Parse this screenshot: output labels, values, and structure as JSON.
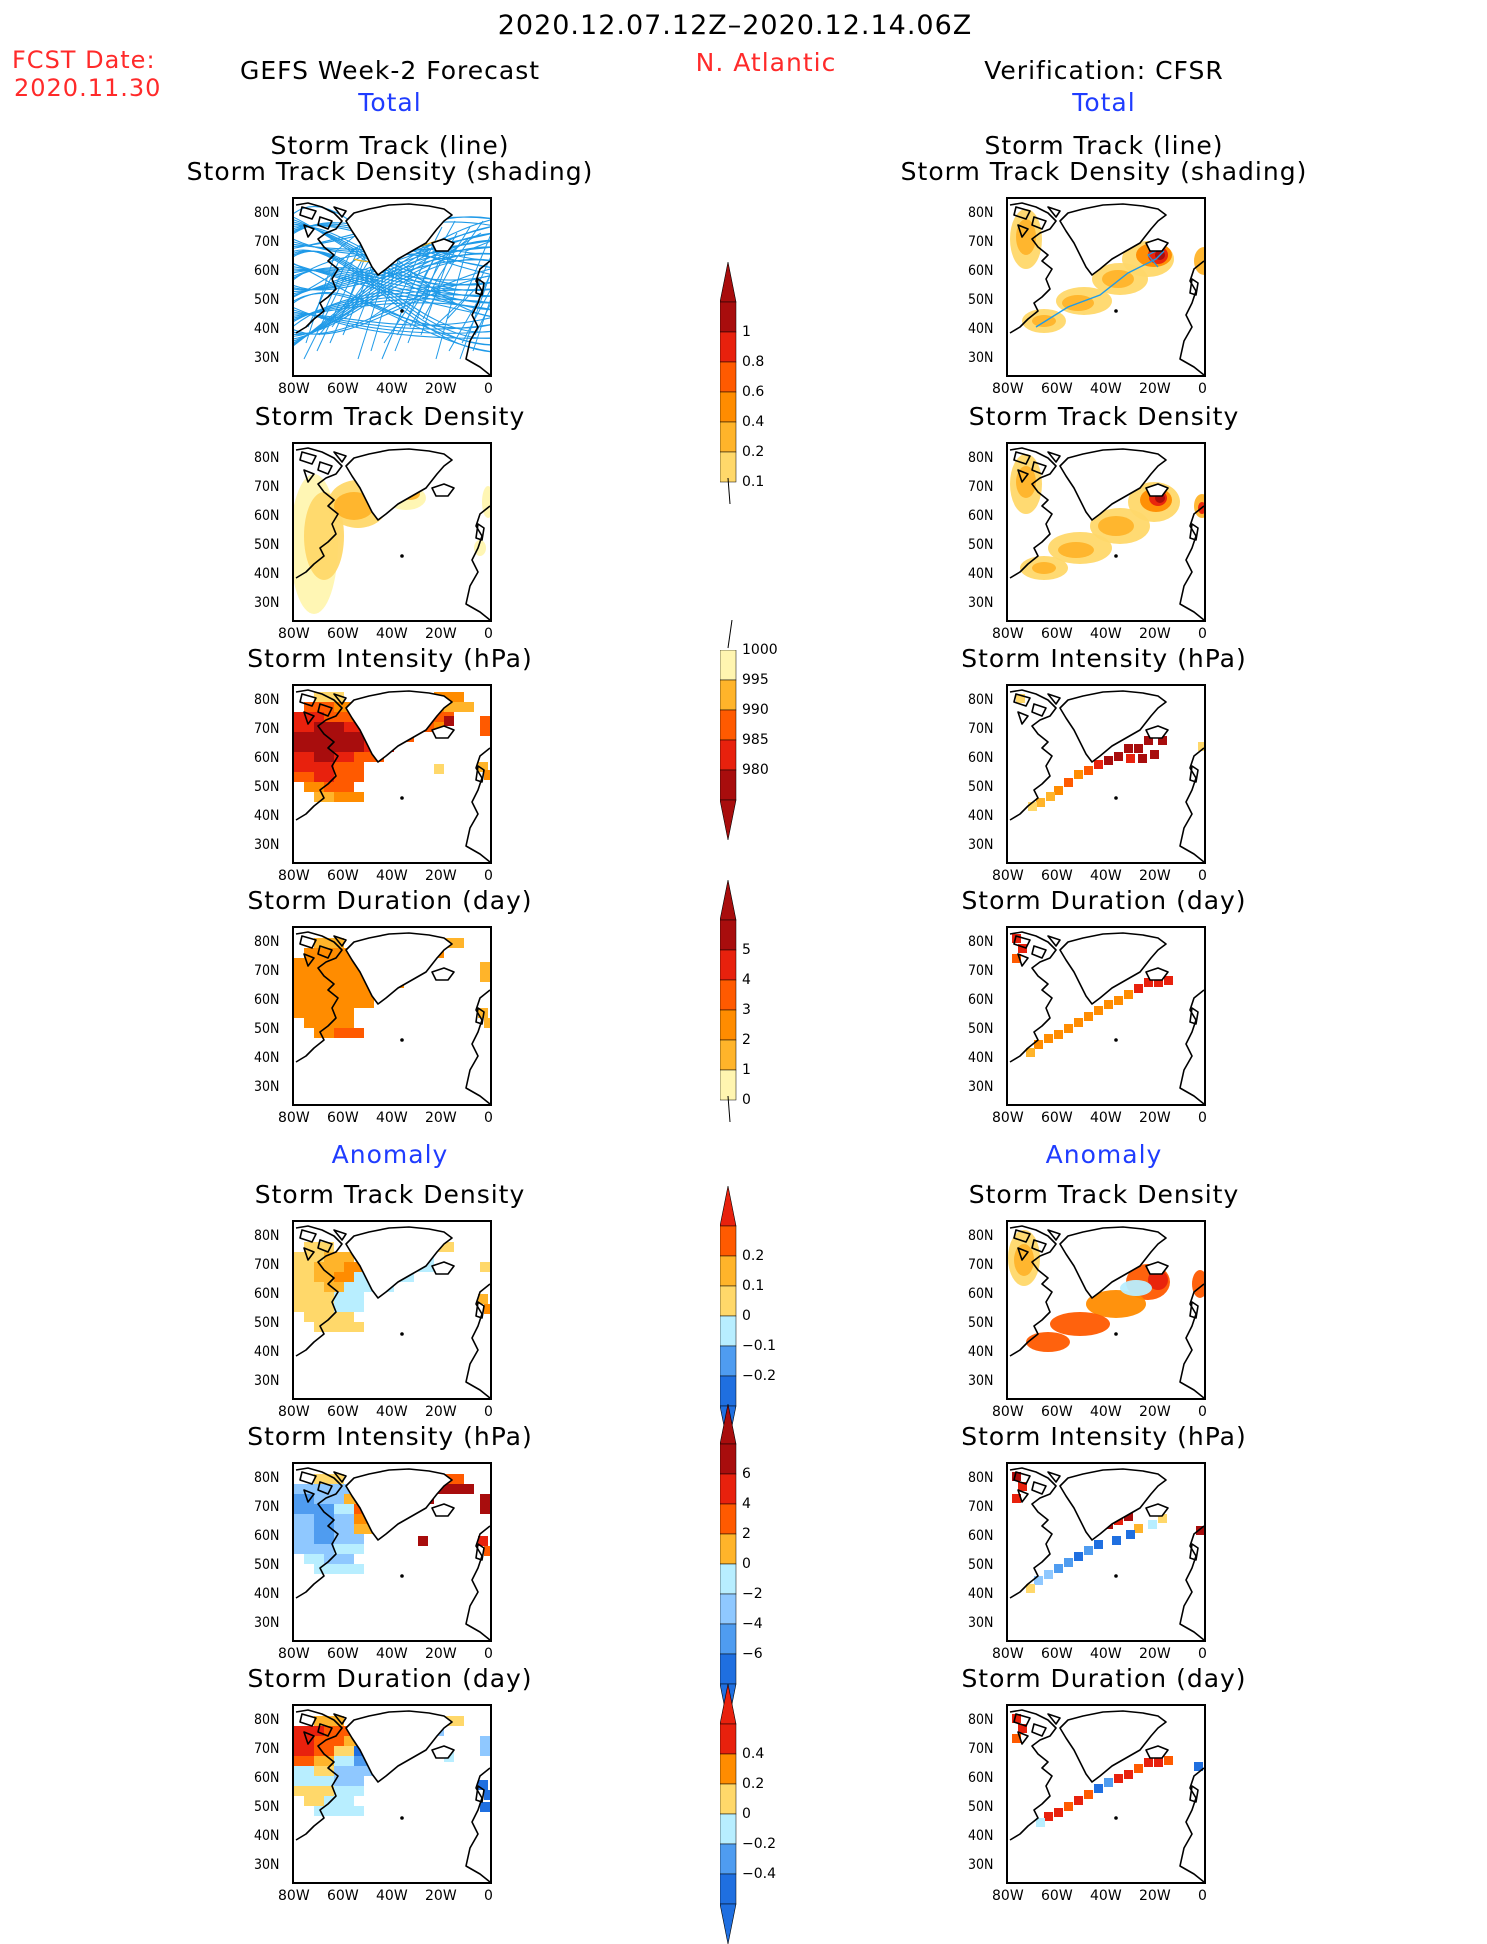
{
  "header": {
    "date_range": "2020.12.07.12Z–2020.12.14.06Z",
    "fcst_label": "FCST Date:",
    "fcst_date": "2020.11.30",
    "left_title": "GEFS Week-2 Forecast",
    "region": "N. Atlantic",
    "right_title": "Verification: CFSR"
  },
  "section_labels": {
    "total": "Total",
    "anomaly": "Anomaly"
  },
  "panel_titles": {
    "track_line": "Storm Track (line)",
    "track_density_shading": "Storm Track Density (shading)",
    "track_density": "Storm Track Density",
    "intensity": "Storm Intensity (hPa)",
    "duration": "Storm Duration (day)"
  },
  "axes": {
    "lat_labels": [
      "80N",
      "70N",
      "60N",
      "50N",
      "40N",
      "30N"
    ],
    "lon_labels": [
      "80W",
      "60W",
      "40W",
      "20W",
      "0"
    ]
  },
  "colorbars": {
    "density": [
      "1",
      "0.8",
      "0.6",
      "0.4",
      "0.2",
      "0.1"
    ],
    "intensity": [
      "1000",
      "995",
      "990",
      "985",
      "980"
    ],
    "duration": [
      "5",
      "4",
      "3",
      "2",
      "1",
      "0"
    ],
    "density_anom": [
      "0.2",
      "0.1",
      "0",
      "−0.1",
      "−0.2"
    ],
    "intensity_anom": [
      "6",
      "4",
      "2",
      "0",
      "−2",
      "−4",
      "−6"
    ],
    "duration_anom": [
      "0.4",
      "0.2",
      "0",
      "−0.2",
      "−0.4"
    ]
  },
  "colors": {
    "warm": [
      "#fff5b0",
      "#ffd86a",
      "#ffb42a",
      "#ff8c00",
      "#ff5a00",
      "#e8210d",
      "#a80d0d"
    ],
    "cool": [
      "#b8eeff",
      "#8fc8ff",
      "#4f9cf0",
      "#1f6fe0"
    ],
    "track_line": "#1f9ae8"
  }
}
